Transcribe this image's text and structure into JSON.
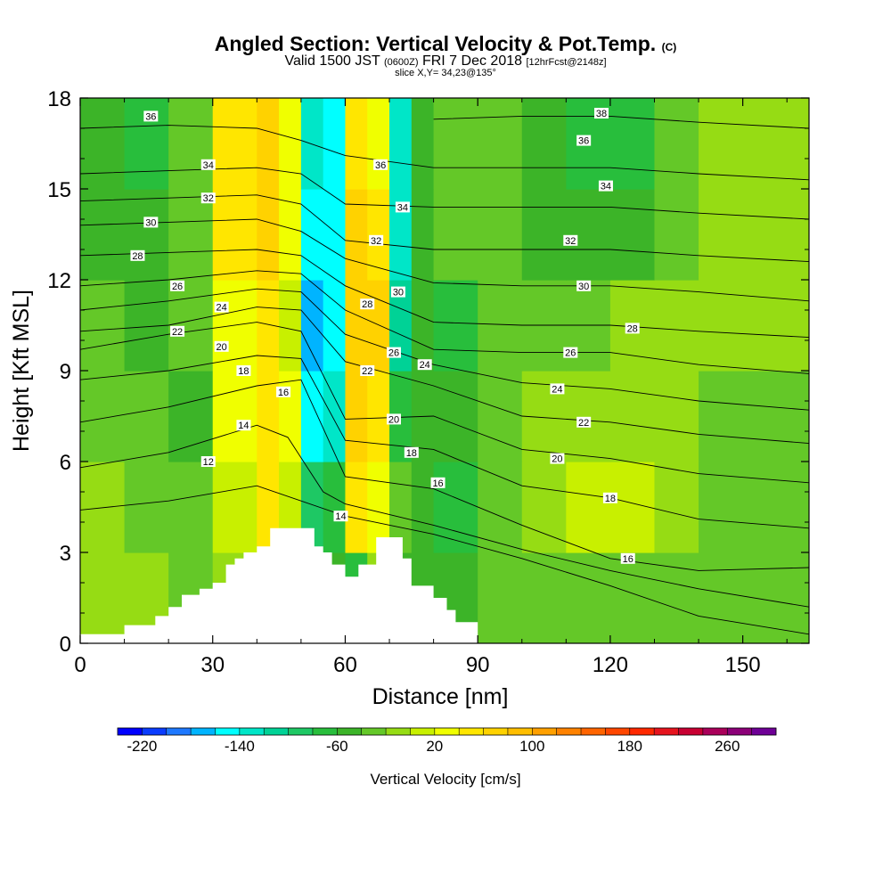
{
  "header": {
    "title": "Angled Section: Vertical Velocity & Pot.Temp.",
    "title_unit": "(C)",
    "valid_main": "Valid 1500 JST",
    "valid_utc": "(0600Z)",
    "valid_date": "FRI 7 Dec 2018",
    "forecast": "[12hrFcst@2148z]",
    "slice": "slice X,Y= 34,23@135°"
  },
  "chart_data": {
    "type": "heatmap",
    "title": "Angled Section: Vertical Velocity & Pot.Temp.",
    "xlabel": "Distance [nm]",
    "ylabel": "Height [Kft MSL]",
    "xlim": [
      0,
      165
    ],
    "ylim": [
      0,
      18
    ],
    "xticks": [
      0,
      30,
      60,
      90,
      120,
      150
    ],
    "yticks": [
      0,
      3,
      6,
      9,
      12,
      15,
      18
    ],
    "field": "Vertical Velocity [cm/s]",
    "shading": {
      "x": [
        0,
        10,
        20,
        30,
        40,
        45,
        50,
        55,
        60,
        65,
        70,
        75,
        80,
        90,
        100,
        110,
        120,
        130,
        140,
        150,
        165
      ],
      "bands": [
        {
          "z": [
            0,
            3
          ],
          "w": [
            -20,
            -20,
            -30,
            -10,
            20,
            -50,
            -50,
            -60,
            -70,
            -20,
            -60,
            -60,
            -60,
            -40,
            -30,
            -30,
            -30,
            -30,
            -30,
            -30,
            -30
          ]
        },
        {
          "z": [
            3,
            6
          ],
          "w": [
            -20,
            -30,
            -40,
            10,
            40,
            0,
            -90,
            -80,
            40,
            30,
            -30,
            -60,
            -70,
            -40,
            -20,
            10,
            0,
            -20,
            -30,
            -40,
            -40
          ]
        },
        {
          "z": [
            6,
            9
          ],
          "w": [
            -30,
            -40,
            -60,
            20,
            50,
            30,
            -150,
            -140,
            60,
            50,
            -70,
            -60,
            -60,
            -40,
            -20,
            -10,
            -10,
            -20,
            -30,
            -30,
            -40
          ]
        },
        {
          "z": [
            9,
            12
          ],
          "w": [
            -40,
            -50,
            -40,
            30,
            50,
            10,
            -170,
            -160,
            70,
            60,
            -110,
            -60,
            -70,
            -40,
            -30,
            -30,
            -20,
            -20,
            -20,
            -20,
            -30
          ]
        },
        {
          "z": [
            12,
            15
          ],
          "w": [
            -50,
            -60,
            -30,
            40,
            60,
            20,
            -160,
            -150,
            60,
            40,
            -140,
            -60,
            -40,
            -40,
            -60,
            -60,
            -50,
            -30,
            -20,
            -20,
            -30
          ]
        },
        {
          "z": [
            15,
            18
          ],
          "w": [
            -60,
            -70,
            -40,
            40,
            60,
            30,
            -140,
            -150,
            40,
            20,
            -140,
            -50,
            -40,
            -40,
            -60,
            -80,
            -70,
            -40,
            -20,
            -20,
            -30
          ]
        }
      ]
    },
    "terrain": {
      "x": [
        0,
        10,
        17,
        20,
        23,
        27,
        30,
        33,
        35,
        37,
        40,
        43,
        47,
        50,
        53,
        55,
        57,
        60,
        63,
        67,
        70,
        73,
        75,
        80,
        83,
        85,
        90
      ],
      "z": [
        0.3,
        0.6,
        0.9,
        1.2,
        1.6,
        1.8,
        2.0,
        2.6,
        2.8,
        3.0,
        3.2,
        3.8,
        3.8,
        3.8,
        3.2,
        3.0,
        2.6,
        2.2,
        2.6,
        3.5,
        3.5,
        2.8,
        1.9,
        1.5,
        1.1,
        0.7,
        0.3
      ]
    },
    "theta_contours": [
      {
        "level": 12,
        "x": [
          0,
          20,
          40,
          50,
          60,
          80,
          100,
          120,
          140,
          165
        ],
        "z": [
          4.4,
          4.7,
          5.2,
          4.7,
          4.2,
          3.6,
          2.8,
          1.9,
          0.9,
          0.3
        ]
      },
      {
        "level": 14,
        "x": [
          0,
          20,
          40,
          47,
          55,
          60,
          80,
          100,
          120,
          140,
          165
        ],
        "z": [
          5.8,
          6.3,
          7.2,
          6.8,
          5.0,
          4.6,
          3.9,
          3.1,
          2.4,
          1.8,
          1.2
        ]
      },
      {
        "level": 16,
        "x": [
          0,
          20,
          40,
          50,
          60,
          80,
          100,
          120,
          140,
          165
        ],
        "z": [
          7.3,
          7.8,
          8.5,
          8.7,
          5.5,
          5.1,
          3.9,
          2.8,
          2.4,
          2.5
        ]
      },
      {
        "level": 18,
        "x": [
          0,
          20,
          40,
          50,
          60,
          80,
          100,
          120,
          140,
          165
        ],
        "z": [
          8.7,
          9.0,
          9.5,
          9.4,
          6.7,
          6.4,
          5.2,
          4.8,
          4.1,
          3.8
        ]
      },
      {
        "level": 20,
        "x": [
          0,
          20,
          40,
          50,
          60,
          80,
          100,
          120,
          140,
          165
        ],
        "z": [
          9.7,
          10.2,
          10.6,
          10.3,
          7.4,
          7.5,
          6.4,
          6.1,
          5.6,
          5.3
        ]
      },
      {
        "level": 22,
        "x": [
          0,
          20,
          40,
          50,
          60,
          80,
          100,
          120,
          140,
          165
        ],
        "z": [
          10.3,
          10.5,
          11.1,
          11.0,
          9.3,
          8.5,
          7.5,
          7.3,
          6.9,
          6.6
        ]
      },
      {
        "level": 24,
        "x": [
          0,
          20,
          40,
          50,
          60,
          80,
          100,
          120,
          140,
          165
        ],
        "z": [
          11.0,
          11.3,
          11.7,
          11.6,
          10.2,
          9.2,
          8.6,
          8.4,
          8.0,
          7.7
        ]
      },
      {
        "level": 26,
        "x": [
          0,
          20,
          40,
          50,
          60,
          80,
          100,
          120,
          140,
          165
        ],
        "z": [
          11.8,
          12.0,
          12.3,
          12.2,
          11.0,
          9.7,
          9.6,
          9.6,
          9.2,
          8.9
        ]
      },
      {
        "level": 28,
        "x": [
          0,
          20,
          40,
          50,
          60,
          80,
          100,
          120,
          140,
          165
        ],
        "z": [
          12.8,
          12.9,
          13.0,
          12.8,
          11.8,
          10.6,
          10.5,
          10.5,
          10.3,
          10.1
        ]
      },
      {
        "level": 30,
        "x": [
          0,
          20,
          40,
          50,
          60,
          80,
          100,
          120,
          140,
          165
        ],
        "z": [
          13.8,
          13.9,
          14.0,
          13.6,
          12.7,
          11.9,
          11.8,
          11.8,
          11.6,
          11.3
        ]
      },
      {
        "level": 32,
        "x": [
          0,
          20,
          40,
          50,
          60,
          80,
          100,
          120,
          140,
          165
        ],
        "z": [
          14.6,
          14.7,
          14.8,
          14.5,
          13.3,
          13.0,
          13.0,
          13.0,
          12.8,
          12.6
        ]
      },
      {
        "level": 34,
        "x": [
          0,
          20,
          40,
          50,
          60,
          80,
          100,
          120,
          140,
          165
        ],
        "z": [
          15.5,
          15.6,
          15.7,
          15.5,
          14.5,
          14.4,
          14.4,
          14.4,
          14.2,
          14.0
        ]
      },
      {
        "level": 36,
        "x": [
          0,
          20,
          40,
          50,
          60,
          80,
          100,
          120,
          140,
          165
        ],
        "z": [
          17.0,
          17.1,
          17.0,
          16.6,
          16.1,
          15.7,
          15.7,
          15.7,
          15.5,
          15.3
        ]
      },
      {
        "level": 38,
        "x": [
          80,
          100,
          120,
          140,
          165
        ],
        "z": [
          17.3,
          17.4,
          17.4,
          17.2,
          17.0
        ]
      }
    ],
    "contour_labels": [
      {
        "text": "36",
        "x": 16,
        "z": 17.4
      },
      {
        "text": "34",
        "x": 29,
        "z": 15.8
      },
      {
        "text": "32",
        "x": 29,
        "z": 14.7
      },
      {
        "text": "30",
        "x": 16,
        "z": 13.9
      },
      {
        "text": "28",
        "x": 13,
        "z": 12.8
      },
      {
        "text": "26",
        "x": 22,
        "z": 11.8
      },
      {
        "text": "24",
        "x": 32,
        "z": 11.1
      },
      {
        "text": "22",
        "x": 22,
        "z": 10.3
      },
      {
        "text": "20",
        "x": 32,
        "z": 9.8
      },
      {
        "text": "18",
        "x": 37,
        "z": 9.0
      },
      {
        "text": "16",
        "x": 46,
        "z": 8.3
      },
      {
        "text": "14",
        "x": 37,
        "z": 7.2
      },
      {
        "text": "12",
        "x": 29,
        "z": 6.0
      },
      {
        "text": "36",
        "x": 68,
        "z": 15.8
      },
      {
        "text": "34",
        "x": 73,
        "z": 14.4
      },
      {
        "text": "32",
        "x": 67,
        "z": 13.3
      },
      {
        "text": "30",
        "x": 72,
        "z": 11.6
      },
      {
        "text": "28",
        "x": 65,
        "z": 11.2
      },
      {
        "text": "26",
        "x": 71,
        "z": 9.6
      },
      {
        "text": "24",
        "x": 78,
        "z": 9.2
      },
      {
        "text": "22",
        "x": 65,
        "z": 9.0
      },
      {
        "text": "20",
        "x": 71,
        "z": 7.4
      },
      {
        "text": "18",
        "x": 75,
        "z": 6.3
      },
      {
        "text": "16",
        "x": 81,
        "z": 5.3
      },
      {
        "text": "14",
        "x": 59,
        "z": 4.2
      },
      {
        "text": "38",
        "x": 118,
        "z": 17.5
      },
      {
        "text": "36",
        "x": 114,
        "z": 16.6
      },
      {
        "text": "34",
        "x": 119,
        "z": 15.1
      },
      {
        "text": "32",
        "x": 111,
        "z": 13.3
      },
      {
        "text": "30",
        "x": 114,
        "z": 11.8
      },
      {
        "text": "28",
        "x": 125,
        "z": 10.4
      },
      {
        "text": "26",
        "x": 111,
        "z": 9.6
      },
      {
        "text": "24",
        "x": 108,
        "z": 8.4
      },
      {
        "text": "22",
        "x": 114,
        "z": 7.3
      },
      {
        "text": "20",
        "x": 108,
        "z": 6.1
      },
      {
        "text": "18",
        "x": 120,
        "z": 4.8
      },
      {
        "text": "16",
        "x": 124,
        "z": 2.8
      }
    ],
    "colorbar": {
      "label": "Vertical Velocity [cm/s]",
      "min": -240,
      "step": 20,
      "tick_labels": [
        -220,
        -140,
        -60,
        20,
        100,
        180,
        260
      ],
      "colors": [
        "#0000ff",
        "#0a3cff",
        "#1e78ff",
        "#00b4ff",
        "#00ffff",
        "#00e6c8",
        "#00d296",
        "#1ec864",
        "#28be3c",
        "#3cb428",
        "#64c828",
        "#96dc14",
        "#c8f000",
        "#f0ff00",
        "#ffe600",
        "#ffd200",
        "#ffbe00",
        "#ffa000",
        "#ff8200",
        "#ff6400",
        "#ff4600",
        "#ff2800",
        "#e6141e",
        "#c80032",
        "#aa005a",
        "#8c0078",
        "#6e0096"
      ]
    }
  }
}
